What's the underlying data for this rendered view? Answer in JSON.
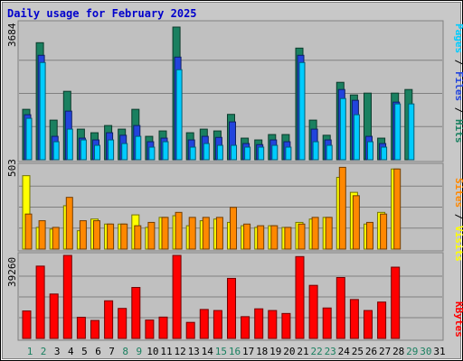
{
  "chart_data": {
    "type": "bar",
    "title": "Daily usage for February 2025",
    "days": [
      "1",
      "2",
      "3",
      "4",
      "5",
      "6",
      "7",
      "8",
      "9",
      "10",
      "11",
      "12",
      "13",
      "14",
      "15",
      "16",
      "17",
      "18",
      "19",
      "20",
      "21",
      "22",
      "23",
      "24",
      "25",
      "26",
      "27",
      "28",
      "29",
      "30",
      "31"
    ],
    "weekend_days": [
      "1",
      "2",
      "8",
      "9",
      "15",
      "16",
      "22",
      "23",
      "29",
      "30"
    ],
    "top_panel": {
      "max_label": "3684",
      "ymax": 3684,
      "axis_legend": [
        {
          "text": "Pages",
          "color": "#00ccff"
        },
        {
          "text": " / ",
          "color": "#000000"
        },
        {
          "text": "Files",
          "color": "#2244dd"
        },
        {
          "text": " / ",
          "color": "#000000"
        },
        {
          "text": "Hits",
          "color": "#1a8060"
        }
      ],
      "series": [
        {
          "key": "hits",
          "color": "#1a8060",
          "values": [
            1400,
            3250,
            1100,
            1900,
            850,
            750,
            950,
            850,
            1400,
            650,
            800,
            3684,
            750,
            850,
            800,
            1260,
            600,
            550,
            700,
            700,
            3100,
            1100,
            680,
            2150,
            1800,
            1850,
            600,
            1850,
            1950,
            0,
            0
          ]
        },
        {
          "key": "files",
          "color": "#2244dd",
          "values": [
            1250,
            2900,
            650,
            1350,
            600,
            550,
            750,
            680,
            950,
            500,
            600,
            2850,
            550,
            650,
            620,
            1050,
            450,
            420,
            550,
            500,
            2900,
            850,
            550,
            1950,
            1650,
            650,
            450,
            1600,
            0,
            0,
            0
          ]
        },
        {
          "key": "pages",
          "color": "#00ccff",
          "values": [
            1150,
            2700,
            500,
            850,
            550,
            400,
            550,
            450,
            650,
            350,
            500,
            2500,
            350,
            450,
            400,
            400,
            350,
            350,
            400,
            350,
            2700,
            500,
            400,
            1700,
            1250,
            500,
            350,
            1550,
            1550,
            0,
            0
          ]
        }
      ]
    },
    "middle_panel": {
      "max_label": "503",
      "ymax": 503,
      "axis_legend": [
        {
          "text": "Sites",
          "color": "#ff8800"
        },
        {
          "text": " / ",
          "color": "#000000"
        },
        {
          "text": "Visits",
          "color": "#ffff00"
        }
      ],
      "series": [
        {
          "key": "visits",
          "color": "#ffff00",
          "values": [
            440,
            130,
            120,
            260,
            110,
            180,
            150,
            150,
            205,
            130,
            190,
            200,
            140,
            170,
            180,
            160,
            140,
            130,
            140,
            130,
            160,
            180,
            190,
            430,
            340,
            150,
            220,
            480,
            0,
            0,
            0
          ]
        },
        {
          "key": "sites",
          "color": "#ff8800",
          "values": [
            210,
            170,
            130,
            310,
            170,
            170,
            150,
            150,
            140,
            160,
            190,
            220,
            190,
            190,
            190,
            250,
            150,
            140,
            140,
            130,
            150,
            190,
            190,
            490,
            320,
            160,
            210,
            480,
            0,
            0,
            0
          ]
        }
      ]
    },
    "bottom_panel": {
      "max_label": "39260",
      "ymax": 39260,
      "axis_legend": [
        {
          "text": "KBytes",
          "color": "#ff0000"
        }
      ],
      "series": [
        {
          "key": "kbytes",
          "color": "#ff0000",
          "values": [
            13000,
            34200,
            21000,
            39260,
            10000,
            8500,
            17800,
            14200,
            24100,
            8700,
            10100,
            39260,
            7600,
            13700,
            13200,
            28400,
            10300,
            14000,
            13200,
            11800,
            38700,
            25100,
            14400,
            28800,
            18400,
            13200,
            17200,
            33700,
            0,
            0,
            0
          ]
        }
      ]
    }
  }
}
